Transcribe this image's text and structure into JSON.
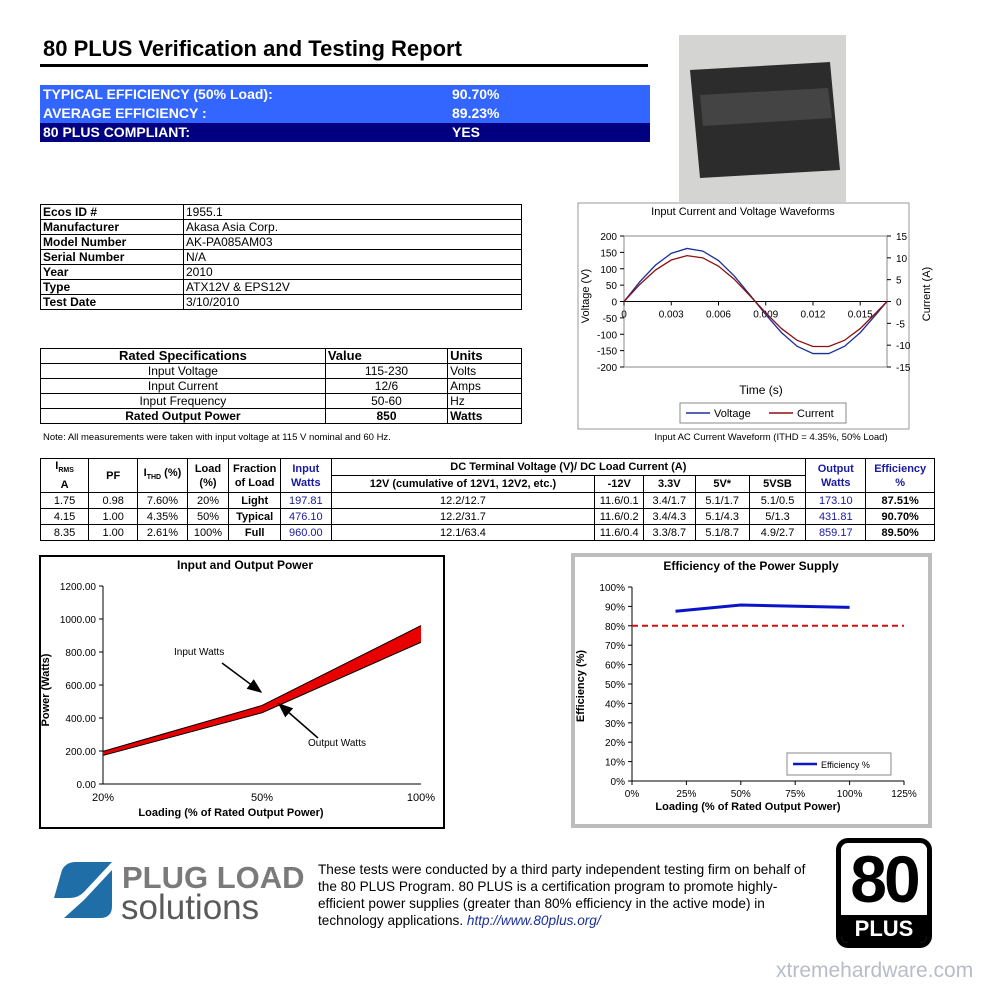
{
  "header": {
    "title": "80 PLUS Verification and Testing Report"
  },
  "summary": [
    [
      "TYPICAL EFFICIENCY (50% Load):",
      "90.70%"
    ],
    [
      "AVERAGE EFFICIENCY :",
      "89.23%"
    ],
    [
      "80 PLUS COMPLIANT:",
      "YES"
    ]
  ],
  "info_table": [
    [
      "Ecos ID #",
      "1955.1"
    ],
    [
      "Manufacturer",
      "Akasa Asia Corp."
    ],
    [
      "Model Number",
      "AK-PA085AM03"
    ],
    [
      "Serial Number",
      "N/A"
    ],
    [
      "Year",
      "2010"
    ],
    [
      "Type",
      "ATX12V & EPS12V"
    ],
    [
      "Test Date",
      "3/10/2010"
    ]
  ],
  "specs_table": {
    "header": [
      "Rated Specifications",
      "Value",
      "Units"
    ],
    "rows": [
      [
        "Input Voltage",
        "115-230",
        "Volts"
      ],
      [
        "Input Current",
        "12/6",
        "Amps"
      ],
      [
        "Input Frequency",
        "50-60",
        "Hz"
      ],
      [
        "Rated Output Power",
        "850",
        "Watts"
      ]
    ]
  },
  "note": "Note: All measurements were taken with input voltage at 115 V nominal and 60 Hz.",
  "test_table": {
    "header": {
      "irms": "I",
      "irms_sub": "RMS",
      "irms_unit": "A",
      "pf": "PF",
      "ithd": "I",
      "ithd_sub": "THD",
      "ithd_unit": "(%)",
      "load": "Load",
      "load_unit": "(%)",
      "fraction": "Fraction",
      "fraction_unit": "of Load",
      "input": "Input",
      "input_unit": "Watts",
      "dc": "DC Terminal Voltage (V)/ DC Load Current (A)",
      "v12": "12V (cumulative of 12V1, 12V2, etc.)",
      "vm12": "-12V",
      "v33": "3.3V",
      "v5": "5V*",
      "v5sb": "5VSB",
      "output": "Output",
      "output_unit": "Watts",
      "eff": "Efficiency",
      "eff_unit": "%"
    },
    "rows": [
      [
        "1.75",
        "0.98",
        "7.60%",
        "20%",
        "Light",
        "197.81",
        "12.2/12.7",
        "11.6/0.1",
        "3.4/1.7",
        "5.1/1.7",
        "5.1/0.5",
        "173.10",
        "87.51%"
      ],
      [
        "4.15",
        "1.00",
        "4.35%",
        "50%",
        "Typical",
        "476.10",
        "12.2/31.7",
        "11.6/0.2",
        "3.4/4.3",
        "5.1/4.3",
        "5/1.3",
        "431.81",
        "90.70%"
      ],
      [
        "8.35",
        "1.00",
        "2.61%",
        "100%",
        "Full",
        "960.00",
        "12.1/63.4",
        "11.6/0.4",
        "3.3/8.7",
        "5.1/8.7",
        "4.9/2.7",
        "859.17",
        "89.50%"
      ]
    ]
  },
  "chart_data": [
    {
      "type": "line",
      "title": "Input Current and Voltage Waveforms",
      "x_label": "Time (s)",
      "y_label": "Voltage (V)",
      "y2_label": "Current (A)",
      "caption": "Input AC Current Waveform (ITHD = 4.35%, 50% Load)",
      "x": [
        0,
        0.001,
        0.002,
        0.003,
        0.004,
        0.005,
        0.006,
        0.007,
        0.008,
        0.009,
        0.01,
        0.011,
        0.012,
        0.013,
        0.014,
        0.015,
        0.016,
        0.0167
      ],
      "series": [
        {
          "name": "Voltage",
          "color": "#1a2f99",
          "values": [
            0,
            60,
            111,
            147,
            162,
            154,
            125,
            78,
            20,
            -40,
            -95,
            -137,
            -159,
            -159,
            -137,
            -95,
            -40,
            0
          ]
        },
        {
          "name": "Current",
          "color": "#8b1010",
          "axis": "y2",
          "values": [
            0,
            3.9,
            7.2,
            9.5,
            10.5,
            10,
            8.1,
            5.1,
            1.3,
            -2.6,
            -6.2,
            -8.9,
            -10.3,
            -10.3,
            -8.9,
            -6.2,
            -2.6,
            0
          ]
        }
      ],
      "xlim": [
        0,
        0.0167
      ],
      "xticks": [
        0,
        0.003,
        0.006,
        0.009,
        0.012,
        0.015
      ],
      "ylim": [
        -200,
        200
      ],
      "yticks": [
        -200,
        -150,
        -100,
        -50,
        0,
        50,
        100,
        150,
        200
      ],
      "y2lim": [
        -15,
        15
      ],
      "y2ticks": [
        -15,
        -10,
        -5,
        0,
        5,
        10,
        15
      ],
      "legend": "bottom"
    },
    {
      "type": "area",
      "title": "Input and Output Power",
      "x_label": "Loading (% of Rated Output Power)",
      "y_label": "Power (Watts)",
      "categories": [
        "20%",
        "50%",
        "100%"
      ],
      "band_color": "#e80000",
      "series": [
        {
          "name": "Input Watts",
          "color": "#000000",
          "values": [
            197.81,
            476.1,
            960.0
          ]
        },
        {
          "name": "Output Watts",
          "color": "#000000",
          "values": [
            173.1,
            431.81,
            859.17
          ]
        }
      ],
      "ylim": [
        0,
        1200
      ],
      "yticks": [
        {
          "value": 0,
          "label": "0.00"
        },
        {
          "value": 200,
          "label": "200.00"
        },
        {
          "value": 400,
          "label": "400.00"
        },
        {
          "value": 600,
          "label": "600.00"
        },
        {
          "value": 800,
          "label": "800.00"
        },
        {
          "value": 1000,
          "label": "1000.00"
        },
        {
          "value": 1200,
          "label": "1200.00"
        }
      ]
    },
    {
      "type": "line",
      "title": "Efficiency of the Power Supply",
      "x_label": "Loading (% of Rated Output Power)",
      "y_label": "Efficiency (%)",
      "x": [
        20,
        50,
        100
      ],
      "series": [
        {
          "name": "Efficiency %",
          "color": "#0a14c8",
          "values": [
            87.51,
            90.7,
            89.5
          ]
        }
      ],
      "threshold": {
        "value": 80,
        "color": "#d01010"
      },
      "xlim": [
        0,
        125
      ],
      "xticks": [
        {
          "value": 0,
          "label": "0%"
        },
        {
          "value": 25,
          "label": "25%"
        },
        {
          "value": 50,
          "label": "50%"
        },
        {
          "value": 75,
          "label": "75%"
        },
        {
          "value": 100,
          "label": "100%"
        },
        {
          "value": 125,
          "label": "125%"
        }
      ],
      "ylim": [
        0,
        100
      ],
      "yticks": [
        {
          "value": 0,
          "label": "0%"
        },
        {
          "value": 10,
          "label": "10%"
        },
        {
          "value": 20,
          "label": "20%"
        },
        {
          "value": 30,
          "label": "30%"
        },
        {
          "value": 40,
          "label": "40%"
        },
        {
          "value": 50,
          "label": "50%"
        },
        {
          "value": 60,
          "label": "60%"
        },
        {
          "value": 70,
          "label": "70%"
        },
        {
          "value": 80,
          "label": "80%"
        },
        {
          "value": 90,
          "label": "90%"
        },
        {
          "value": 100,
          "label": "100%"
        }
      ],
      "legend": "lower right"
    }
  ],
  "footer": {
    "logo_top": "PLUG LOAD",
    "logo_bottom": "solutions",
    "text": "These tests were conducted by a third party independent testing firm on behalf of the 80 PLUS Program. 80 PLUS is a certification program to promote highly-efficient power supplies (greater than 80% efficiency in the active mode) in technology applications.",
    "link": "http://www.80plus.org/",
    "badge_number": "80",
    "badge_text": "PLUS",
    "watermark": "xtremehardware.com"
  }
}
